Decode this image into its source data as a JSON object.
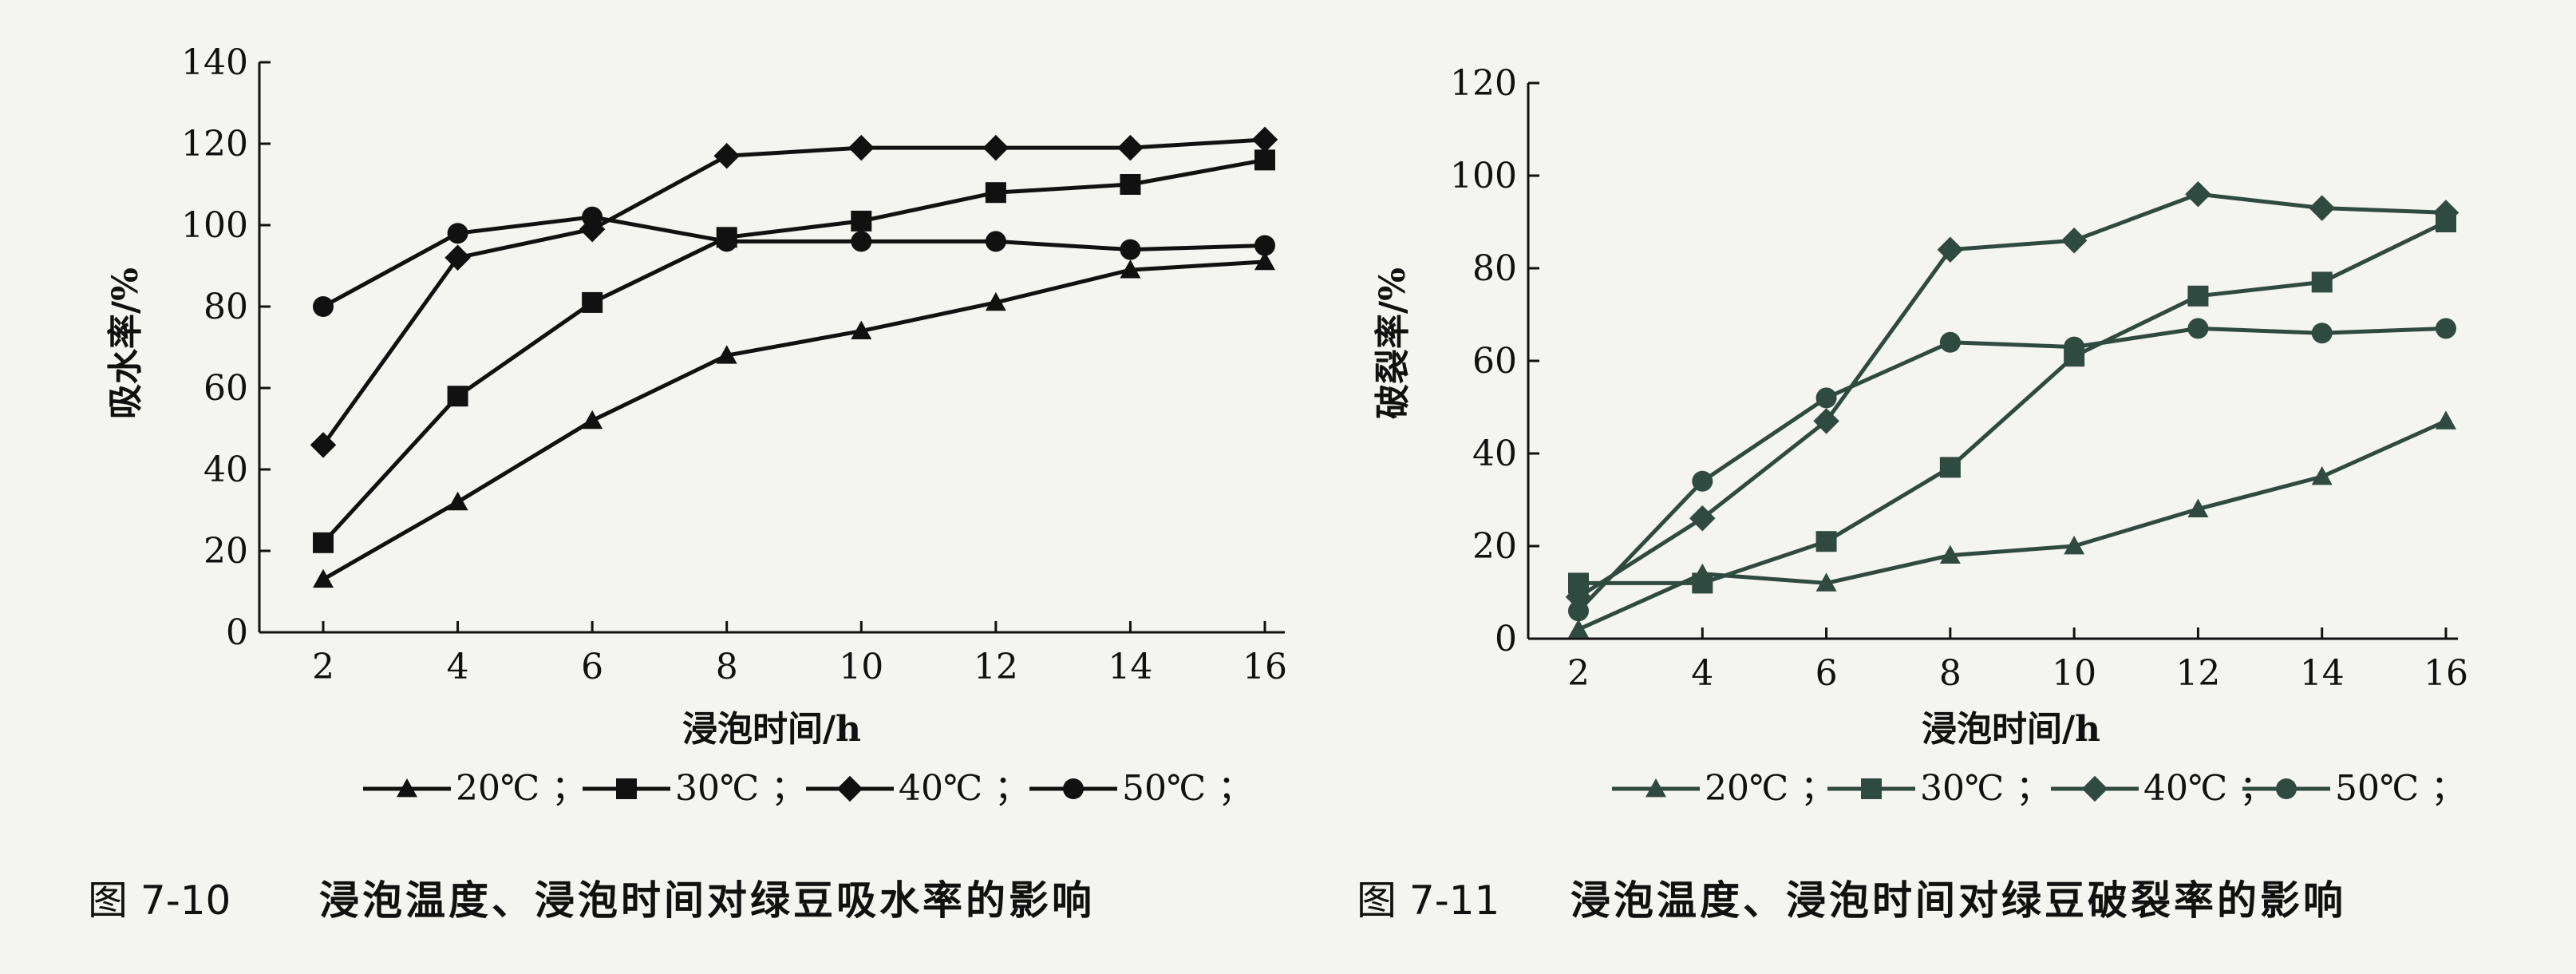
{
  "chart_data": [
    {
      "type": "line",
      "ylabel": "吸水率/%",
      "xlabel": "浸泡时间/h",
      "x": [
        2,
        4,
        6,
        8,
        10,
        12,
        14,
        16
      ],
      "xticks": [
        "2",
        "4",
        "6",
        "8",
        "10",
        "12",
        "14",
        "16"
      ],
      "ylim": [
        0,
        140
      ],
      "yticks": [
        "0",
        "20",
        "40",
        "60",
        "80",
        "100",
        "120",
        "140"
      ],
      "series": [
        {
          "name": "20℃",
          "marker": "triangle",
          "values": [
            13,
            32,
            52,
            68,
            74,
            81,
            89,
            91
          ]
        },
        {
          "name": "30℃",
          "marker": "square",
          "values": [
            22,
            58,
            81,
            97,
            101,
            108,
            110,
            116
          ]
        },
        {
          "name": "40℃",
          "marker": "diamond",
          "values": [
            46,
            92,
            99,
            117,
            119,
            119,
            119,
            121
          ]
        },
        {
          "name": "50℃",
          "marker": "circle",
          "values": [
            80,
            98,
            102,
            96,
            96,
            96,
            94,
            95
          ]
        }
      ],
      "legend_position": "bottom",
      "grid": false
    },
    {
      "type": "line",
      "ylabel": "破裂率/%",
      "xlabel": "浸泡时间/h",
      "x": [
        2,
        4,
        6,
        8,
        10,
        12,
        14,
        16
      ],
      "xticks": [
        "2",
        "4",
        "6",
        "8",
        "10",
        "12",
        "14",
        "16"
      ],
      "ylim": [
        0,
        120
      ],
      "yticks": [
        "0",
        "20",
        "40",
        "60",
        "80",
        "100",
        "120"
      ],
      "series": [
        {
          "name": "20℃",
          "marker": "triangle",
          "values": [
            2,
            14,
            12,
            18,
            20,
            28,
            35,
            47
          ]
        },
        {
          "name": "30℃",
          "marker": "square",
          "values": [
            12,
            12,
            21,
            37,
            61,
            74,
            77,
            90
          ]
        },
        {
          "name": "40℃",
          "marker": "diamond",
          "values": [
            9,
            26,
            47,
            84,
            86,
            96,
            93,
            92
          ]
        },
        {
          "name": "50℃",
          "marker": "circle",
          "values": [
            6,
            34,
            52,
            64,
            63,
            67,
            66,
            67
          ]
        }
      ],
      "legend_position": "bottom",
      "grid": false
    }
  ],
  "captions": [
    {
      "label": "图 7-10",
      "text": "浸泡温度、浸泡时间对绿豆吸水率的影响"
    },
    {
      "label": "图 7-11",
      "text": "浸泡温度、浸泡时间对绿豆破裂率的影响"
    }
  ],
  "colors": [
    "#111111",
    "#2f4a40"
  ]
}
